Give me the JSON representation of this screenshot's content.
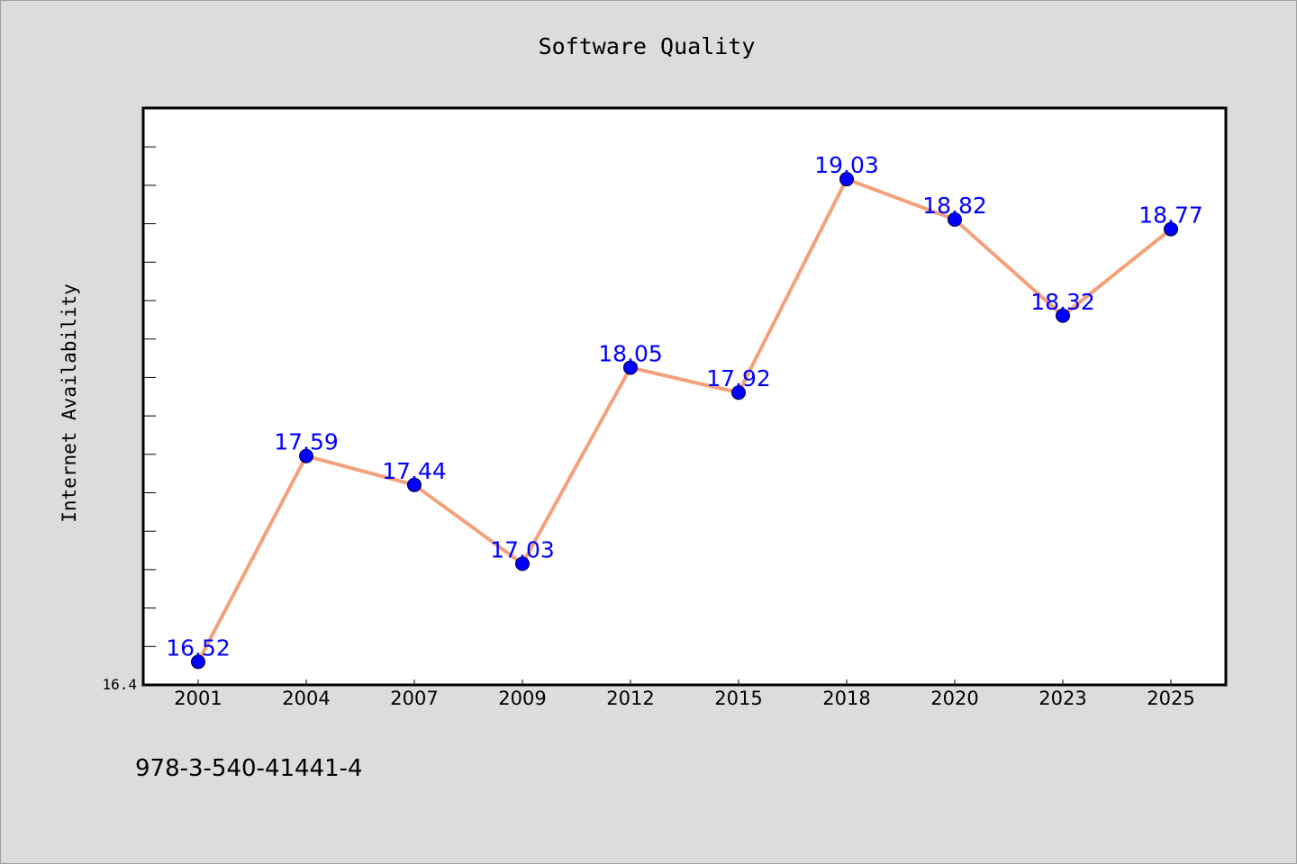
{
  "chart_data": {
    "type": "line",
    "title": "Software Quality",
    "xlabel": "",
    "ylabel": "Internet Availability",
    "categories": [
      "2001",
      "2004",
      "2007",
      "2009",
      "2012",
      "2015",
      "2018",
      "2020",
      "2023",
      "2025"
    ],
    "series": [
      {
        "values": [
          16.52,
          17.59,
          17.44,
          17.03,
          18.05,
          17.92,
          19.03,
          18.82,
          18.32,
          18.77
        ],
        "data_labels": [
          "16.52",
          "17.59",
          "17.44",
          "17.03",
          "18.05",
          "17.92",
          "19.03",
          "18.82",
          "18.32",
          "18.77"
        ],
        "line_color": "#f4a07a",
        "marker_color": "#0000ff"
      }
    ],
    "ylim": [
      16.4,
      19.4
    ],
    "ytick_labels": [
      "16.4"
    ],
    "grid": false,
    "legend": "none",
    "label_color": "#0000ff",
    "background_color": "#dcdcdc",
    "plot_background": "#ffffff"
  },
  "footer": {
    "isbn": "978-3-540-41441-4"
  }
}
